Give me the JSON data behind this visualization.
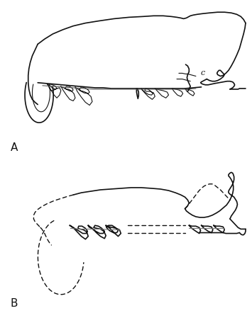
{
  "bg": "#ffffff",
  "lc": "#111111",
  "lw": 1.2,
  "lw_thin": 0.8,
  "lw_dash": 1.0,
  "dash_pattern": [
    4,
    3
  ],
  "label_A": "A",
  "label_B": "B",
  "label_c": "c"
}
